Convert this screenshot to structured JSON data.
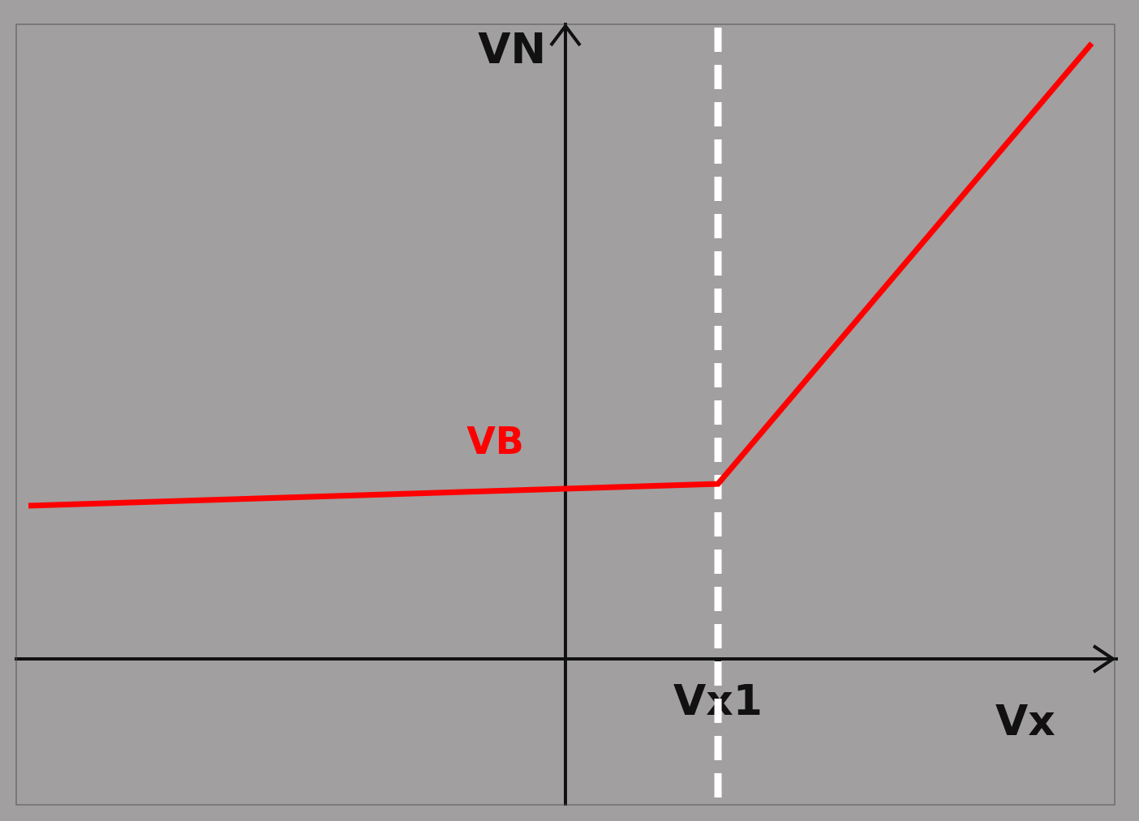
{
  "chart_data": {
    "type": "line",
    "x_label": "Vx",
    "y_label": "VN",
    "x": [
      -3.52,
      1,
      3.45
    ],
    "values": [
      1.05,
      1.2,
      4.22
    ],
    "color": "#ff0000",
    "xlim": [
      -3.6,
      3.6
    ],
    "ylim": [
      -1.0,
      4.35
    ],
    "xticks": [
      {
        "value": 1,
        "label": "Vx1"
      }
    ],
    "annotations": [
      {
        "text": "VB",
        "x": -0.46,
        "y": 1.47
      }
    ],
    "grid": false,
    "tick_labels": "x"
  }
}
